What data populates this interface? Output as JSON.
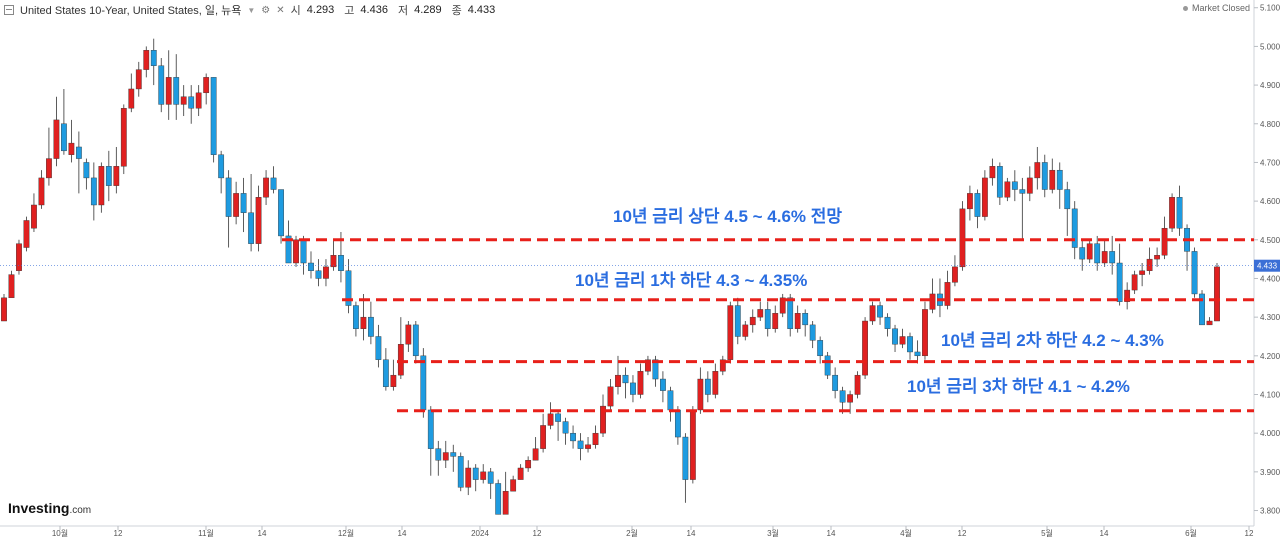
{
  "header": {
    "instrument": "United States 10-Year, United States, 일, 뉴욕",
    "ohlc": [
      {
        "k": "시",
        "v": "4.293"
      },
      {
        "k": "고",
        "v": "4.436"
      },
      {
        "k": "저",
        "v": "4.289"
      },
      {
        "k": "종",
        "v": "4.433"
      }
    ]
  },
  "status": "Market Closed",
  "logo": {
    "brand": "Investing",
    "domain": ".com"
  },
  "colors": {
    "up": "#e02020",
    "down": "#1e9be0",
    "level_line": "#e8201a",
    "annotation": "#2a6de0",
    "last_price": "#3b6fd6"
  },
  "chart_data": {
    "type": "candlestick",
    "ylim": [
      3.76,
      5.12
    ],
    "y_ticks": [
      "5.100",
      "5.000",
      "4.900",
      "4.800",
      "4.700",
      "4.600",
      "4.500",
      "4.400",
      "4.300",
      "4.200",
      "4.100",
      "4.000",
      "3.900",
      "3.800"
    ],
    "x_ticks": [
      "10월",
      "12",
      "11월",
      "14",
      "12월",
      "14",
      "2024",
      "12",
      "2월",
      "14",
      "3월",
      "14",
      "4월",
      "12",
      "5월",
      "14",
      "6월",
      "12"
    ],
    "last_price": {
      "value": 4.433,
      "label": "4.433"
    },
    "levels": [
      {
        "value": 4.5,
        "label": "10년 금리 상단 4.5 ~ 4.6% 전망"
      },
      {
        "value": 4.345,
        "label": "10년 금리 1차 하단 4.3 ~ 4.35%"
      },
      {
        "value": 4.185,
        "label": "10년 금리 2차 하단 4.2 ~ 4.3%"
      },
      {
        "value": 4.058,
        "label": "10년 금리 3차 하단 4.1 ~ 4.2%"
      }
    ],
    "candles": [
      [
        4.29,
        4.35,
        4.3,
        4.36
      ],
      [
        4.35,
        4.41,
        4.36,
        4.42
      ],
      [
        4.42,
        4.49,
        4.41,
        4.5
      ],
      [
        4.48,
        4.55,
        4.47,
        4.56
      ],
      [
        4.53,
        4.59,
        4.52,
        4.62
      ],
      [
        4.59,
        4.66,
        4.58,
        4.68
      ],
      [
        4.66,
        4.71,
        4.64,
        4.79
      ],
      [
        4.71,
        4.81,
        4.69,
        4.87
      ],
      [
        4.8,
        4.73,
        4.72,
        4.89
      ],
      [
        4.72,
        4.75,
        4.7,
        4.81
      ],
      [
        4.74,
        4.71,
        4.62,
        4.78
      ],
      [
        4.7,
        4.66,
        4.63,
        4.71
      ],
      [
        4.66,
        4.59,
        4.55,
        4.7
      ],
      [
        4.59,
        4.69,
        4.57,
        4.7
      ],
      [
        4.69,
        4.64,
        4.6,
        4.73
      ],
      [
        4.64,
        4.69,
        4.62,
        4.74
      ],
      [
        4.69,
        4.84,
        4.67,
        4.85
      ],
      [
        4.84,
        4.89,
        4.83,
        4.93
      ],
      [
        4.89,
        4.94,
        4.87,
        4.96
      ],
      [
        4.94,
        4.99,
        4.92,
        5.0
      ],
      [
        4.99,
        4.95,
        4.9,
        5.02
      ],
      [
        4.95,
        4.85,
        4.83,
        4.97
      ],
      [
        4.85,
        4.92,
        4.81,
        4.99
      ],
      [
        4.92,
        4.85,
        4.81,
        4.98
      ],
      [
        4.85,
        4.87,
        4.82,
        4.9
      ],
      [
        4.87,
        4.84,
        4.8,
        4.9
      ],
      [
        4.84,
        4.88,
        4.82,
        4.9
      ],
      [
        4.88,
        4.92,
        4.85,
        4.93
      ],
      [
        4.92,
        4.72,
        4.7,
        4.92
      ],
      [
        4.72,
        4.66,
        4.62,
        4.73
      ],
      [
        4.66,
        4.56,
        4.48,
        4.68
      ],
      [
        4.56,
        4.62,
        4.54,
        4.65
      ],
      [
        4.62,
        4.57,
        4.52,
        4.66
      ],
      [
        4.57,
        4.49,
        4.47,
        4.67
      ],
      [
        4.49,
        4.61,
        4.47,
        4.64
      ],
      [
        4.61,
        4.66,
        4.59,
        4.68
      ],
      [
        4.66,
        4.63,
        4.62,
        4.69
      ],
      [
        4.63,
        4.51,
        4.49,
        4.63
      ],
      [
        4.51,
        4.44,
        4.44,
        4.55
      ],
      [
        4.44,
        4.5,
        4.43,
        4.51
      ],
      [
        4.5,
        4.44,
        4.41,
        4.51
      ],
      [
        4.44,
        4.42,
        4.4,
        4.47
      ],
      [
        4.42,
        4.4,
        4.38,
        4.45
      ],
      [
        4.4,
        4.43,
        4.38,
        4.45
      ],
      [
        4.43,
        4.46,
        4.42,
        4.5
      ],
      [
        4.46,
        4.42,
        4.39,
        4.52
      ],
      [
        4.42,
        4.33,
        4.31,
        4.45
      ],
      [
        4.33,
        4.27,
        4.25,
        4.34
      ],
      [
        4.27,
        4.3,
        4.24,
        4.36
      ],
      [
        4.3,
        4.25,
        4.23,
        4.34
      ],
      [
        4.25,
        4.19,
        4.17,
        4.28
      ],
      [
        4.19,
        4.12,
        4.11,
        4.22
      ],
      [
        4.12,
        4.15,
        4.11,
        4.19
      ],
      [
        4.15,
        4.23,
        4.14,
        4.3
      ],
      [
        4.23,
        4.28,
        4.21,
        4.29
      ],
      [
        4.28,
        4.2,
        4.18,
        4.29
      ],
      [
        4.2,
        4.06,
        4.04,
        4.22
      ],
      [
        4.06,
        3.96,
        3.89,
        4.07
      ],
      [
        3.96,
        3.93,
        3.89,
        3.98
      ],
      [
        3.93,
        3.95,
        3.91,
        3.98
      ],
      [
        3.95,
        3.94,
        3.9,
        3.97
      ],
      [
        3.94,
        3.86,
        3.85,
        3.95
      ],
      [
        3.86,
        3.91,
        3.84,
        3.93
      ],
      [
        3.91,
        3.88,
        3.85,
        3.92
      ],
      [
        3.88,
        3.9,
        3.87,
        3.92
      ],
      [
        3.9,
        3.87,
        3.83,
        3.91
      ],
      [
        3.87,
        3.79,
        3.79,
        3.88
      ],
      [
        3.79,
        3.85,
        3.8,
        3.9
      ],
      [
        3.85,
        3.88,
        3.86,
        3.89
      ],
      [
        3.88,
        3.91,
        3.88,
        3.92
      ],
      [
        3.91,
        3.93,
        3.9,
        3.94
      ],
      [
        3.93,
        3.96,
        3.93,
        3.99
      ],
      [
        3.96,
        4.02,
        3.95,
        4.05
      ],
      [
        4.02,
        4.05,
        4.01,
        4.08
      ],
      [
        4.05,
        4.03,
        3.98,
        4.06
      ],
      [
        4.03,
        4.0,
        3.97,
        4.04
      ],
      [
        4.0,
        3.98,
        3.96,
        4.02
      ],
      [
        3.98,
        3.96,
        3.93,
        4.0
      ],
      [
        3.96,
        3.97,
        3.95,
        3.99
      ],
      [
        3.97,
        4.0,
        3.96,
        4.02
      ],
      [
        4.0,
        4.07,
        3.99,
        4.1
      ],
      [
        4.07,
        4.12,
        4.06,
        4.14
      ],
      [
        4.12,
        4.15,
        4.1,
        4.2
      ],
      [
        4.15,
        4.13,
        4.09,
        4.17
      ],
      [
        4.13,
        4.1,
        4.08,
        4.15
      ],
      [
        4.1,
        4.16,
        4.09,
        4.18
      ],
      [
        4.16,
        4.19,
        4.15,
        4.2
      ],
      [
        4.19,
        4.14,
        4.12,
        4.2
      ],
      [
        4.14,
        4.11,
        4.08,
        4.16
      ],
      [
        4.11,
        4.06,
        4.03,
        4.12
      ],
      [
        4.06,
        3.99,
        3.97,
        4.07
      ],
      [
        3.99,
        3.88,
        3.82,
        4.0
      ],
      [
        3.88,
        4.06,
        3.87,
        4.07
      ],
      [
        4.06,
        4.14,
        4.05,
        4.17
      ],
      [
        4.14,
        4.1,
        4.08,
        4.16
      ],
      [
        4.1,
        4.16,
        4.09,
        4.18
      ],
      [
        4.16,
        4.19,
        4.15,
        4.2
      ],
      [
        4.19,
        4.33,
        4.18,
        4.34
      ],
      [
        4.33,
        4.25,
        4.23,
        4.35
      ],
      [
        4.25,
        4.28,
        4.24,
        4.29
      ],
      [
        4.28,
        4.3,
        4.26,
        4.32
      ],
      [
        4.3,
        4.32,
        4.29,
        4.34
      ],
      [
        4.32,
        4.27,
        4.25,
        4.34
      ],
      [
        4.27,
        4.31,
        4.26,
        4.33
      ],
      [
        4.31,
        4.35,
        4.3,
        4.36
      ],
      [
        4.35,
        4.27,
        4.25,
        4.36
      ],
      [
        4.27,
        4.31,
        4.26,
        4.33
      ],
      [
        4.31,
        4.28,
        4.25,
        4.32
      ],
      [
        4.28,
        4.24,
        4.22,
        4.29
      ],
      [
        4.24,
        4.2,
        4.18,
        4.25
      ],
      [
        4.2,
        4.15,
        4.14,
        4.21
      ],
      [
        4.15,
        4.11,
        4.09,
        4.17
      ],
      [
        4.11,
        4.08,
        4.05,
        4.12
      ],
      [
        4.08,
        4.1,
        4.05,
        4.11
      ],
      [
        4.1,
        4.15,
        4.09,
        4.16
      ],
      [
        4.15,
        4.29,
        4.14,
        4.3
      ],
      [
        4.29,
        4.33,
        4.28,
        4.34
      ],
      [
        4.33,
        4.3,
        4.28,
        4.34
      ],
      [
        4.3,
        4.27,
        4.25,
        4.31
      ],
      [
        4.27,
        4.23,
        4.21,
        4.28
      ],
      [
        4.23,
        4.25,
        4.22,
        4.27
      ],
      [
        4.25,
        4.21,
        4.19,
        4.26
      ],
      [
        4.21,
        4.2,
        4.18,
        4.24
      ],
      [
        4.2,
        4.32,
        4.19,
        4.34
      ],
      [
        4.32,
        4.36,
        4.31,
        4.4
      ],
      [
        4.36,
        4.33,
        4.3,
        4.4
      ],
      [
        4.33,
        4.39,
        4.32,
        4.42
      ],
      [
        4.39,
        4.43,
        4.38,
        4.46
      ],
      [
        4.43,
        4.58,
        4.42,
        4.6
      ],
      [
        4.58,
        4.62,
        4.55,
        4.64
      ],
      [
        4.62,
        4.56,
        4.53,
        4.63
      ],
      [
        4.56,
        4.66,
        4.55,
        4.68
      ],
      [
        4.66,
        4.69,
        4.64,
        4.71
      ],
      [
        4.69,
        4.61,
        4.59,
        4.7
      ],
      [
        4.61,
        4.65,
        4.6,
        4.66
      ],
      [
        4.65,
        4.63,
        4.6,
        4.68
      ],
      [
        4.63,
        4.62,
        4.5,
        4.66
      ],
      [
        4.62,
        4.66,
        4.6,
        4.69
      ],
      [
        4.66,
        4.7,
        4.63,
        4.74
      ],
      [
        4.7,
        4.63,
        4.61,
        4.72
      ],
      [
        4.63,
        4.68,
        4.62,
        4.71
      ],
      [
        4.68,
        4.63,
        4.58,
        4.7
      ],
      [
        4.63,
        4.58,
        4.51,
        4.65
      ],
      [
        4.58,
        4.48,
        4.45,
        4.6
      ],
      [
        4.48,
        4.45,
        4.42,
        4.5
      ],
      [
        4.45,
        4.49,
        4.44,
        4.5
      ],
      [
        4.49,
        4.44,
        4.42,
        4.51
      ],
      [
        4.44,
        4.47,
        4.43,
        4.5
      ],
      [
        4.47,
        4.44,
        4.41,
        4.51
      ],
      [
        4.44,
        4.34,
        4.33,
        4.49
      ],
      [
        4.34,
        4.37,
        4.32,
        4.39
      ],
      [
        4.37,
        4.41,
        4.36,
        4.42
      ],
      [
        4.41,
        4.42,
        4.38,
        4.44
      ],
      [
        4.42,
        4.45,
        4.41,
        4.48
      ],
      [
        4.45,
        4.46,
        4.43,
        4.48
      ],
      [
        4.46,
        4.53,
        4.45,
        4.56
      ],
      [
        4.53,
        4.61,
        4.52,
        4.62
      ],
      [
        4.61,
        4.53,
        4.51,
        4.64
      ],
      [
        4.53,
        4.47,
        4.42,
        4.54
      ],
      [
        4.47,
        4.36,
        4.35,
        4.48
      ],
      [
        4.36,
        4.28,
        4.28,
        4.37
      ],
      [
        4.28,
        4.29,
        4.28,
        4.3
      ],
      [
        4.29,
        4.43,
        4.29,
        4.44
      ]
    ]
  }
}
